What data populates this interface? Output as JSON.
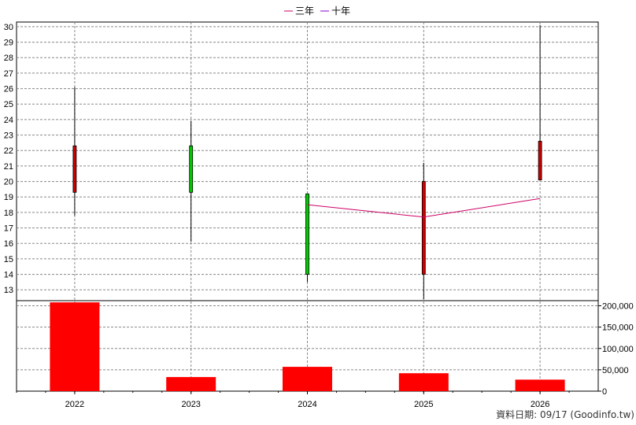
{
  "legend": [
    {
      "label": "三年",
      "color": "#cc0066"
    },
    {
      "label": "十年",
      "color": "#8800cc"
    }
  ],
  "footer": "資料日期: 09/17  (Goodinfo.tw)",
  "colors": {
    "up": "#cc0000",
    "down": "#00cc00",
    "volume": "#ff0000",
    "grid": "#888888",
    "ma3": "#cc0066"
  },
  "chart_data": [
    {
      "type": "candlestick",
      "categories": [
        "2022",
        "2023",
        "2024",
        "2025",
        "2026"
      ],
      "ylim": [
        12.3,
        30.3
      ],
      "yticks": [
        13,
        14,
        15,
        16,
        17,
        18,
        19,
        20,
        21,
        22,
        23,
        24,
        25,
        26,
        27,
        28,
        29,
        30
      ],
      "candles": [
        {
          "x": "2022",
          "open": 19.3,
          "close": 22.3,
          "high": 26.1,
          "low": 17.8,
          "color": "up"
        },
        {
          "x": "2023",
          "open": 22.3,
          "close": 19.3,
          "high": 23.9,
          "low": 16.1,
          "color": "down"
        },
        {
          "x": "2024",
          "open": 19.2,
          "close": 14.0,
          "high": 19.2,
          "low": 13.5,
          "color": "down"
        },
        {
          "x": "2025",
          "open": 14.0,
          "close": 20.0,
          "high": 21.2,
          "low": 12.4,
          "color": "up"
        },
        {
          "x": "2026",
          "open": 20.1,
          "close": 22.6,
          "high": 30.1,
          "low": 20.1,
          "color": "up"
        }
      ],
      "series": [
        {
          "name": "三年",
          "points": [
            {
              "x": "2024",
              "y": 18.5
            },
            {
              "x": "2025",
              "y": 17.7
            },
            {
              "x": "2026",
              "y": 18.9
            }
          ]
        }
      ]
    },
    {
      "type": "bar",
      "categories": [
        "2022",
        "2023",
        "2024",
        "2025",
        "2026"
      ],
      "values": [
        208000,
        33000,
        57000,
        42000,
        27000
      ],
      "ylim": [
        0,
        212000
      ],
      "yticks": [
        0,
        50000,
        100000,
        150000,
        200000
      ],
      "ytick_labels": [
        "0",
        "50,000",
        "100,000",
        "150,000",
        "200,000"
      ]
    }
  ]
}
